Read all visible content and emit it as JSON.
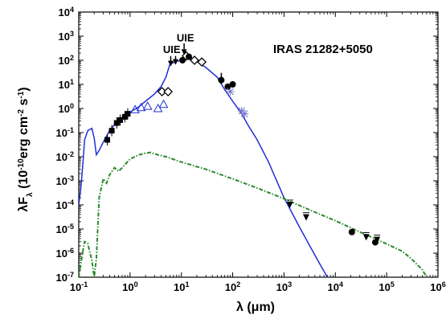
{
  "chart_data": {
    "type": "scatter",
    "title": "IRAS 21282+5050",
    "xlabel": "λ (μm)",
    "ylabel": "λF_λ (10^-10 erg cm^-2 s^-1)",
    "x_scale": "log",
    "y_scale": "log",
    "xlim": [
      0.1,
      1000000
    ],
    "ylim": [
      1e-07,
      10000
    ],
    "grid": false,
    "x_ticks": [
      {
        "value": 0.1,
        "base": "10",
        "exp": "-1"
      },
      {
        "value": 1,
        "base": "10",
        "exp": "0"
      },
      {
        "value": 10,
        "base": "10",
        "exp": "1"
      },
      {
        "value": 100,
        "base": "10",
        "exp": "2"
      },
      {
        "value": 1000,
        "base": "10",
        "exp": "3"
      },
      {
        "value": 10000,
        "base": "10",
        "exp": "4"
      },
      {
        "value": 100000,
        "base": "10",
        "exp": "5"
      },
      {
        "value": 1000000,
        "base": "10",
        "exp": "6"
      }
    ],
    "y_ticks": [
      {
        "value": 10000,
        "base": "10",
        "exp": "4"
      },
      {
        "value": 1000,
        "base": "10",
        "exp": "3"
      },
      {
        "value": 100,
        "base": "10",
        "exp": "2"
      },
      {
        "value": 10,
        "base": "10",
        "exp": "1"
      },
      {
        "value": 1,
        "base": "10",
        "exp": "0"
      },
      {
        "value": 0.1,
        "base": "10",
        "exp": "-1"
      },
      {
        "value": 0.01,
        "base": "10",
        "exp": "-2"
      },
      {
        "value": 0.001,
        "base": "10",
        "exp": "-3"
      },
      {
        "value": 0.0001,
        "base": "10",
        "exp": "-4"
      },
      {
        "value": 1e-05,
        "base": "10",
        "exp": "-5"
      },
      {
        "value": 1e-06,
        "base": "10",
        "exp": "-6"
      },
      {
        "value": 1e-07,
        "base": "10",
        "exp": "-7"
      }
    ],
    "annotations": [
      {
        "text": "UIE",
        "x": 6.5,
        "y": 200
      },
      {
        "text": "UIE",
        "x": 12,
        "y": 600
      }
    ],
    "arrows": [
      {
        "x": 6.2,
        "y_from": 150,
        "y_to": 60
      },
      {
        "x": 7.7,
        "y_from": 150,
        "y_to": 70
      },
      {
        "x": 11.3,
        "y_from": 500,
        "y_to": 180
      },
      {
        "x": 60,
        "y_from": 30,
        "y_to": 11
      }
    ],
    "series": [
      {
        "type": "line",
        "color": "#1f2fd6",
        "points": [
          [
            0.1,
            0.0001
          ],
          [
            0.11,
            0.0005
          ],
          [
            0.12,
            0.005
          ],
          [
            0.13,
            0.05
          ],
          [
            0.15,
            0.12
          ],
          [
            0.18,
            0.15
          ],
          [
            0.2,
            0.06
          ],
          [
            0.22,
            0.012
          ],
          [
            0.25,
            0.018
          ],
          [
            0.3,
            0.04
          ],
          [
            0.4,
            0.12
          ],
          [
            0.6,
            0.35
          ],
          [
            1,
            0.7
          ],
          [
            1.5,
            1.2
          ],
          [
            2,
            2
          ],
          [
            3,
            4
          ],
          [
            4,
            8
          ],
          [
            5,
            20
          ],
          [
            6,
            70
          ],
          [
            7,
            80
          ],
          [
            8,
            90
          ],
          [
            10,
            100
          ],
          [
            12,
            120
          ],
          [
            15,
            110
          ],
          [
            20,
            90
          ],
          [
            30,
            50
          ],
          [
            50,
            20
          ],
          [
            70,
            6
          ],
          [
            100,
            2
          ],
          [
            150,
            0.6
          ],
          [
            200,
            0.2
          ],
          [
            300,
            0.05
          ],
          [
            500,
            0.006
          ],
          [
            1000,
            0.0002
          ],
          [
            2000,
            1.2e-05
          ],
          [
            3000,
            2.5e-06
          ],
          [
            5000,
            3.5e-07
          ],
          [
            7000,
            1e-07
          ]
        ]
      },
      {
        "type": "line",
        "color": "#2a8a2a",
        "dashed": true,
        "points": [
          [
            0.1,
            1e-07
          ],
          [
            0.12,
            1.2e-06
          ],
          [
            0.13,
            3e-06
          ],
          [
            0.15,
            2.5e-06
          ],
          [
            0.18,
            5e-07
          ],
          [
            0.2,
            1e-07
          ],
          [
            0.22,
            6e-07
          ],
          [
            0.25,
            0.0002
          ],
          [
            0.3,
            0.0012
          ],
          [
            0.35,
            0.0008
          ],
          [
            0.4,
            0.0018
          ],
          [
            0.5,
            0.0035
          ],
          [
            0.6,
            0.0025
          ],
          [
            0.7,
            0.0035
          ],
          [
            1,
            0.008
          ],
          [
            1.5,
            0.012
          ],
          [
            2,
            0.014
          ],
          [
            2.5,
            0.015
          ],
          [
            3,
            0.013
          ],
          [
            5,
            0.01
          ],
          [
            10,
            0.006
          ],
          [
            30,
            0.003
          ],
          [
            100,
            0.0012
          ],
          [
            300,
            0.0005
          ],
          [
            1000,
            0.00018
          ],
          [
            3000,
            6.5e-05
          ],
          [
            10000,
            2.2e-05
          ],
          [
            30000,
            7.5e-06
          ],
          [
            100000,
            2.4e-06
          ],
          [
            200000,
            1.2e-06
          ],
          [
            300000,
            6e-07
          ],
          [
            500000,
            2e-07
          ],
          [
            600000,
            1e-07
          ]
        ]
      },
      {
        "type": "points",
        "marker": "square",
        "points": [
          [
            0.36,
            0.05
          ],
          [
            0.44,
            0.12
          ],
          [
            0.55,
            0.25
          ],
          [
            0.64,
            0.33
          ],
          [
            0.79,
            0.45
          ],
          [
            0.9,
            0.6
          ]
        ]
      },
      {
        "type": "points",
        "marker": "triangle-open",
        "points": [
          [
            1.25,
            0.9
          ],
          [
            1.65,
            1.1
          ],
          [
            2.2,
            1.25
          ],
          [
            3.5,
            1.0
          ],
          [
            4.5,
            1.5
          ]
        ]
      },
      {
        "type": "points",
        "marker": "diamond-open",
        "points": [
          [
            4.2,
            5
          ],
          [
            5.5,
            5
          ],
          [
            12.5,
            150
          ],
          [
            18,
            100
          ],
          [
            25,
            85
          ]
        ]
      },
      {
        "type": "points",
        "marker": "circle",
        "points": [
          [
            10.5,
            100
          ],
          [
            14,
            140
          ],
          [
            60,
            15
          ],
          [
            80,
            8
          ],
          [
            100,
            10
          ]
        ]
      },
      {
        "type": "points",
        "marker": "asterisk",
        "points": [
          [
            90,
            5
          ],
          [
            150,
            0.8
          ],
          [
            170,
            0.6
          ]
        ]
      },
      {
        "type": "points",
        "marker": "triangle-down",
        "points": [
          [
            1300,
            0.0001
          ],
          [
            2700,
            3e-05
          ],
          [
            40000,
            4.5e-06
          ],
          [
            65000,
            3.5e-06
          ]
        ]
      },
      {
        "type": "points",
        "marker": "circle",
        "points": [
          [
            21000,
            7.5e-06
          ],
          [
            60000,
            2.8e-06
          ]
        ]
      }
    ]
  }
}
